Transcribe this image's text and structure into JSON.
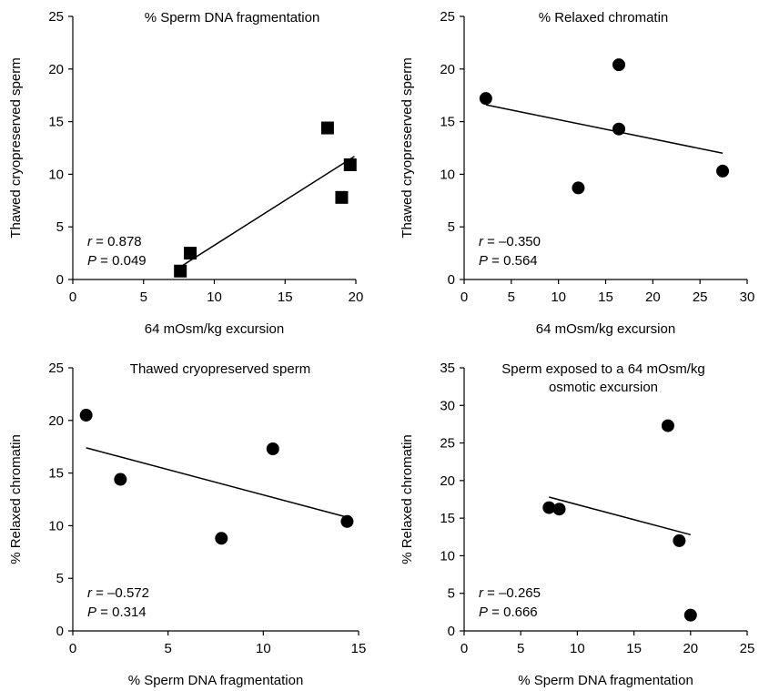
{
  "chart_data": [
    {
      "type": "scatter",
      "title": "% Sperm DNA fragmentation",
      "title_lines": [
        "% Sperm DNA fragmentation"
      ],
      "xlabel": "64 mOsm/kg excursion",
      "ylabel": "Thawed cryopreserved sperm",
      "xlim": [
        0,
        20
      ],
      "ylim": [
        0,
        25
      ],
      "xticks": [
        0,
        5,
        10,
        15,
        20
      ],
      "yticks": [
        0,
        5,
        10,
        15,
        20,
        25
      ],
      "marker": "square",
      "grid": false,
      "points": [
        {
          "x": 7.6,
          "y": 0.8
        },
        {
          "x": 8.3,
          "y": 2.5
        },
        {
          "x": 18.0,
          "y": 14.4
        },
        {
          "x": 19.0,
          "y": 7.8
        },
        {
          "x": 19.6,
          "y": 10.9
        }
      ],
      "trendline": {
        "x": [
          7.6,
          19.9
        ],
        "y": [
          1.2,
          11.7
        ]
      },
      "stats": {
        "r_symbol": "r",
        "r_value": "= 0.878",
        "p_symbol": "P",
        "p_value": "= 0.049"
      }
    },
    {
      "type": "scatter",
      "title": "% Relaxed chromatin",
      "title_lines": [
        "% Relaxed chromatin"
      ],
      "xlabel": "64 mOsm/kg excursion",
      "ylabel": "Thawed cryopreserved sperm",
      "xlim": [
        0,
        30
      ],
      "ylim": [
        0,
        25
      ],
      "xticks": [
        0,
        5,
        10,
        15,
        20,
        25,
        30
      ],
      "yticks": [
        0,
        5,
        10,
        15,
        20,
        25
      ],
      "marker": "circle",
      "grid": false,
      "points": [
        {
          "x": 2.3,
          "y": 17.2
        },
        {
          "x": 12.1,
          "y": 8.7
        },
        {
          "x": 16.4,
          "y": 20.4
        },
        {
          "x": 16.4,
          "y": 14.3
        },
        {
          "x": 27.4,
          "y": 10.3
        }
      ],
      "trendline": {
        "x": [
          2.3,
          27.4
        ],
        "y": [
          16.6,
          12.0
        ]
      },
      "stats": {
        "r_symbol": "r",
        "r_value": "= –0.350",
        "p_symbol": "P",
        "p_value": "= 0.564"
      }
    },
    {
      "type": "scatter",
      "title": "Thawed cryopreserved sperm",
      "title_lines": [
        "Thawed cryopreserved sperm"
      ],
      "xlabel": "% Sperm DNA fragmentation",
      "ylabel": "% Relaxed chromatin",
      "xlim": [
        0,
        15
      ],
      "ylim": [
        0,
        25
      ],
      "xticks": [
        0,
        5,
        10,
        15
      ],
      "yticks": [
        0,
        5,
        10,
        15,
        20,
        25
      ],
      "marker": "circle",
      "grid": false,
      "points": [
        {
          "x": 0.7,
          "y": 20.5
        },
        {
          "x": 2.5,
          "y": 14.4
        },
        {
          "x": 7.8,
          "y": 8.8
        },
        {
          "x": 10.5,
          "y": 17.3
        },
        {
          "x": 14.4,
          "y": 10.4
        }
      ],
      "trendline": {
        "x": [
          0.7,
          14.4
        ],
        "y": [
          17.4,
          10.8
        ]
      },
      "stats": {
        "r_symbol": "r",
        "r_value": "= –0.572",
        "p_symbol": "P",
        "p_value": "= 0.314"
      }
    },
    {
      "type": "scatter",
      "title": "Sperm exposed to a 64 mOsm/kg osmotic excursion",
      "title_lines": [
        "Sperm exposed to a 64 mOsm/kg",
        "osmotic excursion"
      ],
      "xlabel": "% Sperm DNA fragmentation",
      "ylabel": "% Relaxed chromatin",
      "xlim": [
        0,
        25
      ],
      "ylim": [
        0,
        35
      ],
      "xticks": [
        0,
        5,
        10,
        15,
        20,
        25
      ],
      "yticks": [
        0,
        5,
        10,
        15,
        20,
        25,
        30,
        35
      ],
      "marker": "circle",
      "grid": false,
      "points": [
        {
          "x": 7.5,
          "y": 16.4
        },
        {
          "x": 8.4,
          "y": 16.2
        },
        {
          "x": 18.0,
          "y": 27.3
        },
        {
          "x": 19.0,
          "y": 12.0
        },
        {
          "x": 20.0,
          "y": 2.1
        }
      ],
      "trendline": {
        "x": [
          7.5,
          20.0
        ],
        "y": [
          17.8,
          12.8
        ]
      },
      "stats": {
        "r_symbol": "r",
        "r_value": "= –0.265",
        "p_symbol": "P",
        "p_value": "= 0.666"
      }
    }
  ]
}
